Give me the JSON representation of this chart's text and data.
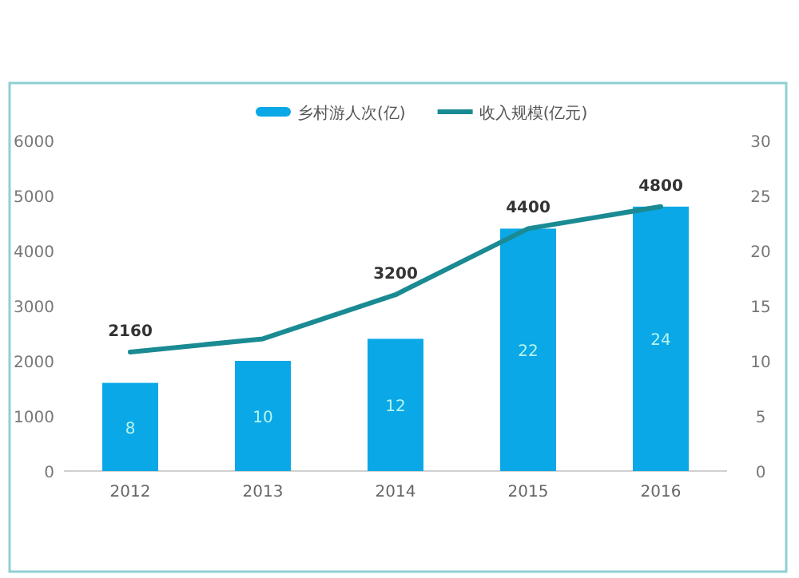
{
  "chart_data": {
    "type": "bar",
    "categories": [
      "2012",
      "2013",
      "2014",
      "2015",
      "2016"
    ],
    "series": [
      {
        "name": "乡村游人次(亿)",
        "axis": "y2",
        "color": "#0aa8e6",
        "values": [
          8,
          10,
          12,
          22,
          24
        ],
        "value_labels": [
          "8",
          "10",
          "12",
          "22",
          "24"
        ]
      },
      {
        "name": "收入规模(亿元)",
        "type": "line",
        "color": "#1a8a93",
        "values": [
          2160,
          2400,
          3200,
          4400,
          4800
        ],
        "value_labels": [
          "2160",
          null,
          "3200",
          "4400",
          "4800"
        ]
      }
    ],
    "ylim": [
      0,
      6000
    ],
    "yticks": [
      0,
      1000,
      2000,
      3000,
      4000,
      5000,
      6000
    ],
    "y2lim": [
      0,
      30
    ],
    "y2ticks": [
      0,
      5,
      10,
      15,
      20,
      25,
      30
    ],
    "grid": false,
    "legend": "top",
    "marker": "none",
    "line_style": "solid"
  }
}
